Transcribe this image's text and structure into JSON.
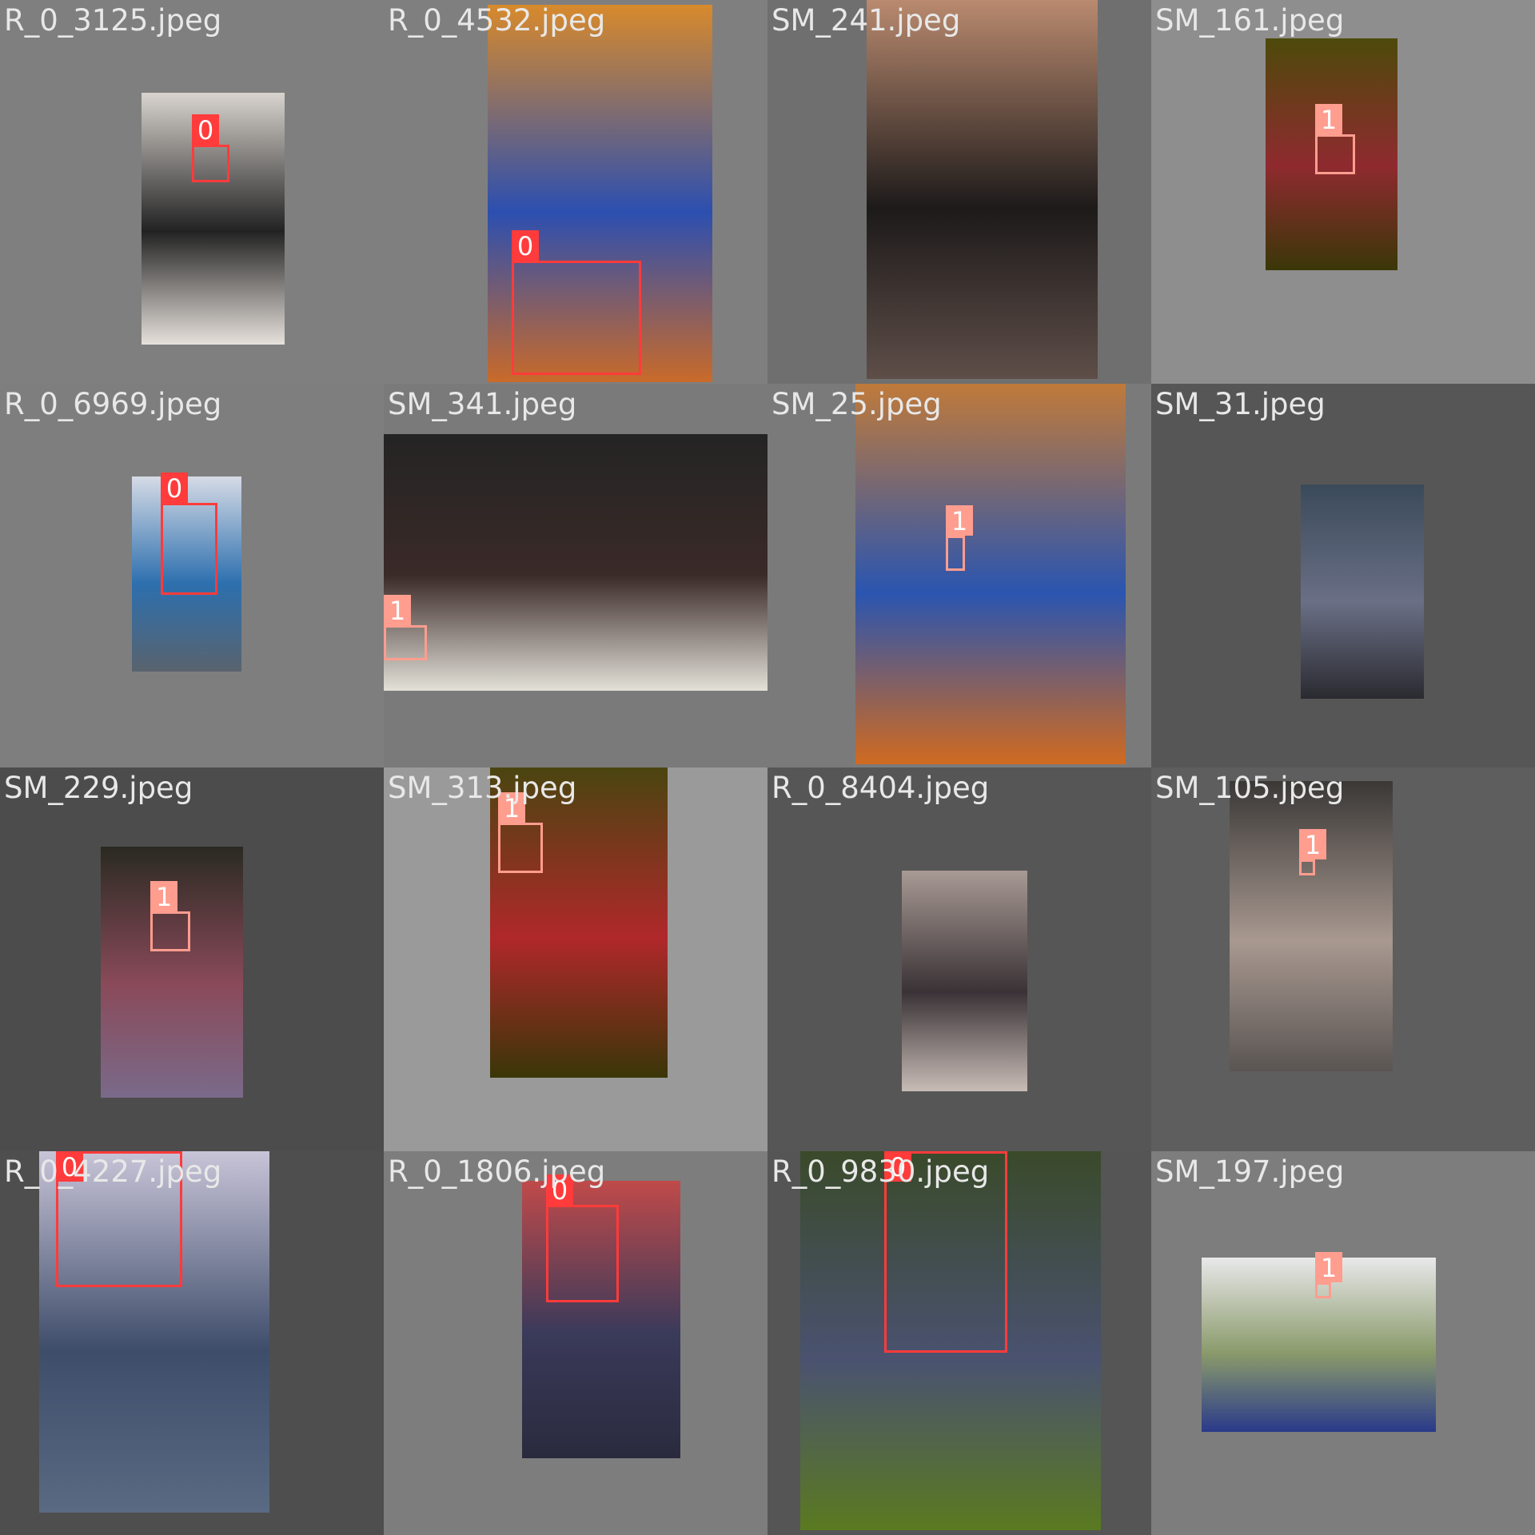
{
  "grid": {
    "tiles": [
      {
        "filename": "R_0_3125.jpeg",
        "bg": "#7f7f7f",
        "photo_colors": [
          "#d9d4cf",
          "#222222",
          "#e7e1dc"
        ],
        "boxes": [
          {
            "label": "0"
          }
        ]
      },
      {
        "filename": "R_0_4532.jpeg",
        "bg": "#7f7f7f",
        "photo_colors": [
          "#d88a2c",
          "#2c4fb0",
          "#c96a2a"
        ],
        "boxes": [
          {
            "label": "0"
          }
        ]
      },
      {
        "filename": "SM_241.jpeg",
        "bg": "#6f6f6f",
        "photo_colors": [
          "#b98a6f",
          "#1d1a1a",
          "#5e4e48"
        ],
        "boxes": []
      },
      {
        "filename": "SM_161.jpeg",
        "bg": "#8e8e8e",
        "photo_colors": [
          "#4d4a0a",
          "#8f2a2f",
          "#3a3708"
        ],
        "boxes": [
          {
            "label": "1"
          }
        ]
      },
      {
        "filename": "R_0_6969.jpeg",
        "bg": "#7e7e7e",
        "photo_colors": [
          "#d6dbe6",
          "#2d6fae",
          "#59636e"
        ],
        "boxes": [
          {
            "label": "0"
          }
        ]
      },
      {
        "filename": "SM_341.jpeg",
        "bg": "#7a7a7a",
        "photo_colors": [
          "#242424",
          "#3a2a28",
          "#e3e1d8"
        ],
        "boxes": [
          {
            "label": "1"
          }
        ]
      },
      {
        "filename": "SM_25.jpeg",
        "bg": "#7a7a7a",
        "photo_colors": [
          "#c07a3a",
          "#2a55b0",
          "#d06a20"
        ],
        "boxes": [
          {
            "label": "1"
          }
        ]
      },
      {
        "filename": "SM_31.jpeg",
        "bg": "#565656",
        "photo_colors": [
          "#3a4a5a",
          "#6a6f86",
          "#2a2a30"
        ],
        "boxes": []
      },
      {
        "filename": "SM_229.jpeg",
        "bg": "#4c4c4c",
        "photo_colors": [
          "#2a2a22",
          "#8a4a5a",
          "#7a6a8a"
        ],
        "boxes": [
          {
            "label": "1"
          }
        ]
      },
      {
        "filename": "SM_313.jpeg",
        "bg": "#9a9a9a",
        "photo_colors": [
          "#4a4510",
          "#b0282a",
          "#3a3608"
        ],
        "boxes": [
          {
            "label": "1"
          }
        ]
      },
      {
        "filename": "R_0_8404.jpeg",
        "bg": "#565656",
        "photo_colors": [
          "#a89a94",
          "#3a3236",
          "#c8bcb6"
        ],
        "boxes": []
      },
      {
        "filename": "SM_105.jpeg",
        "bg": "#5e5e5e",
        "photo_colors": [
          "#3a3836",
          "#a89890",
          "#5a5552"
        ],
        "boxes": [
          {
            "label": "1"
          }
        ]
      },
      {
        "filename": "R_0_4227.jpeg",
        "bg": "#4e4e4e",
        "photo_colors": [
          "#c8c4d8",
          "#3e4d6a",
          "#5a6a82"
        ],
        "boxes": [
          {
            "label": "0"
          }
        ]
      },
      {
        "filename": "R_0_1806.jpeg",
        "bg": "#7d7d7d",
        "photo_colors": [
          "#c04a4a",
          "#3a3a5a",
          "#2a2a3e"
        ],
        "boxes": [
          {
            "label": "0"
          }
        ]
      },
      {
        "filename": "R_0_9830.jpeg",
        "bg": "#555555",
        "photo_colors": [
          "#3a4a2a",
          "#4a5270",
          "#5a7a20"
        ],
        "boxes": [
          {
            "label": "0"
          }
        ]
      },
      {
        "filename": "SM_197.jpeg",
        "bg": "#7d7d7d",
        "photo_colors": [
          "#e8e8ea",
          "#8a9a6a",
          "#2a3a8a"
        ],
        "boxes": [
          {
            "label": "1"
          }
        ]
      }
    ]
  }
}
